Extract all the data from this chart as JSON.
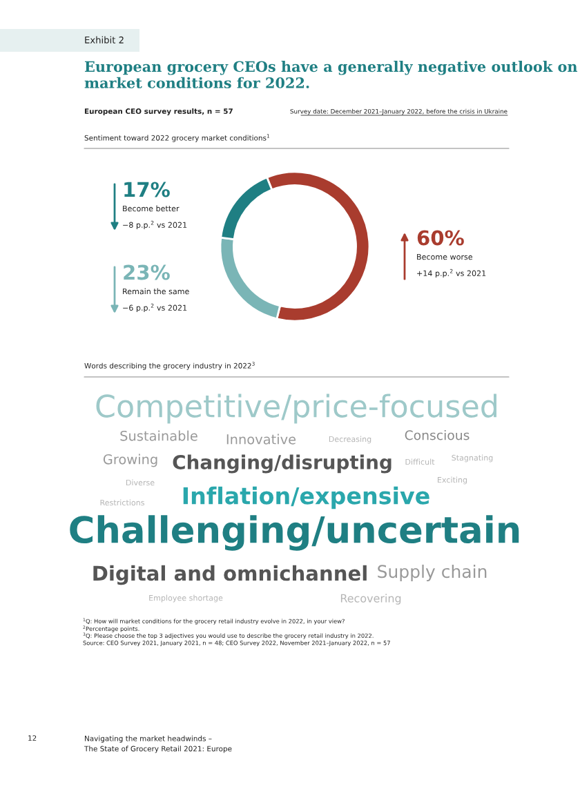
{
  "chart_data": [
    {
      "type": "donut",
      "title": "European grocery CEOs have a generally negative outlook on market conditions for 2022.",
      "subtitle": "European CEO survey results, n = 57",
      "xlabel": "Sentiment toward 2022 grocery market conditions$^{1}$",
      "categories": [
        "Become worse",
        "Remain the same",
        "Become better"
      ],
      "values": [
        60,
        23,
        17
      ],
      "colors": [
        "#a93c2e",
        "#7ab5b6",
        "#1f7f83"
      ],
      "value_labels": [
        "60%",
        "23%",
        "17%"
      ],
      "annotations": [
        "+14 p.p.$^{2}$ vs 2021",
        "−6 p.p.$^{2}$ vs 2021",
        "−8 p.p.$^{2}$ vs 2021",
        "Exhibit 2",
        "Survey date: December 2021–January 2022, before the crisis in Ukraine",
        "$^{1}$Q: How will market conditions for the grocery retail industry evolve in 2022, in your view?",
        "$^{2}$Percentage points.",
        "$^{3}$Q: Please choose the top 3 adjectives you would use to describe the grocery retail industry in 2022.",
        "Source: CEO Survey 2021, January 2021, n = 48; CEO Survey 2022, November 2021–January 2022, n = 57",
        "12",
        "Navigating the market headwinds –\nThe State of Grocery Retail 2021: Europe"
      ]
    },
    {
      "type": "other",
      "title": "Words describing the grocery industry in 2022$^{3}$",
      "annotations": [
        "Competitive/price-focused",
        "Sustainable",
        "Innovative",
        "Decreasing",
        "Conscious",
        "Growing",
        "Changing/disrupting",
        "Difficult",
        "Stagnating",
        "Diverse",
        "Exciting",
        "Restrictions",
        "Inflation/expensive",
        "Challenging/uncertain",
        "Digital and omnichannel",
        "Supply chain",
        "Employee shortage",
        "Recovering"
      ]
    }
  ]
}
